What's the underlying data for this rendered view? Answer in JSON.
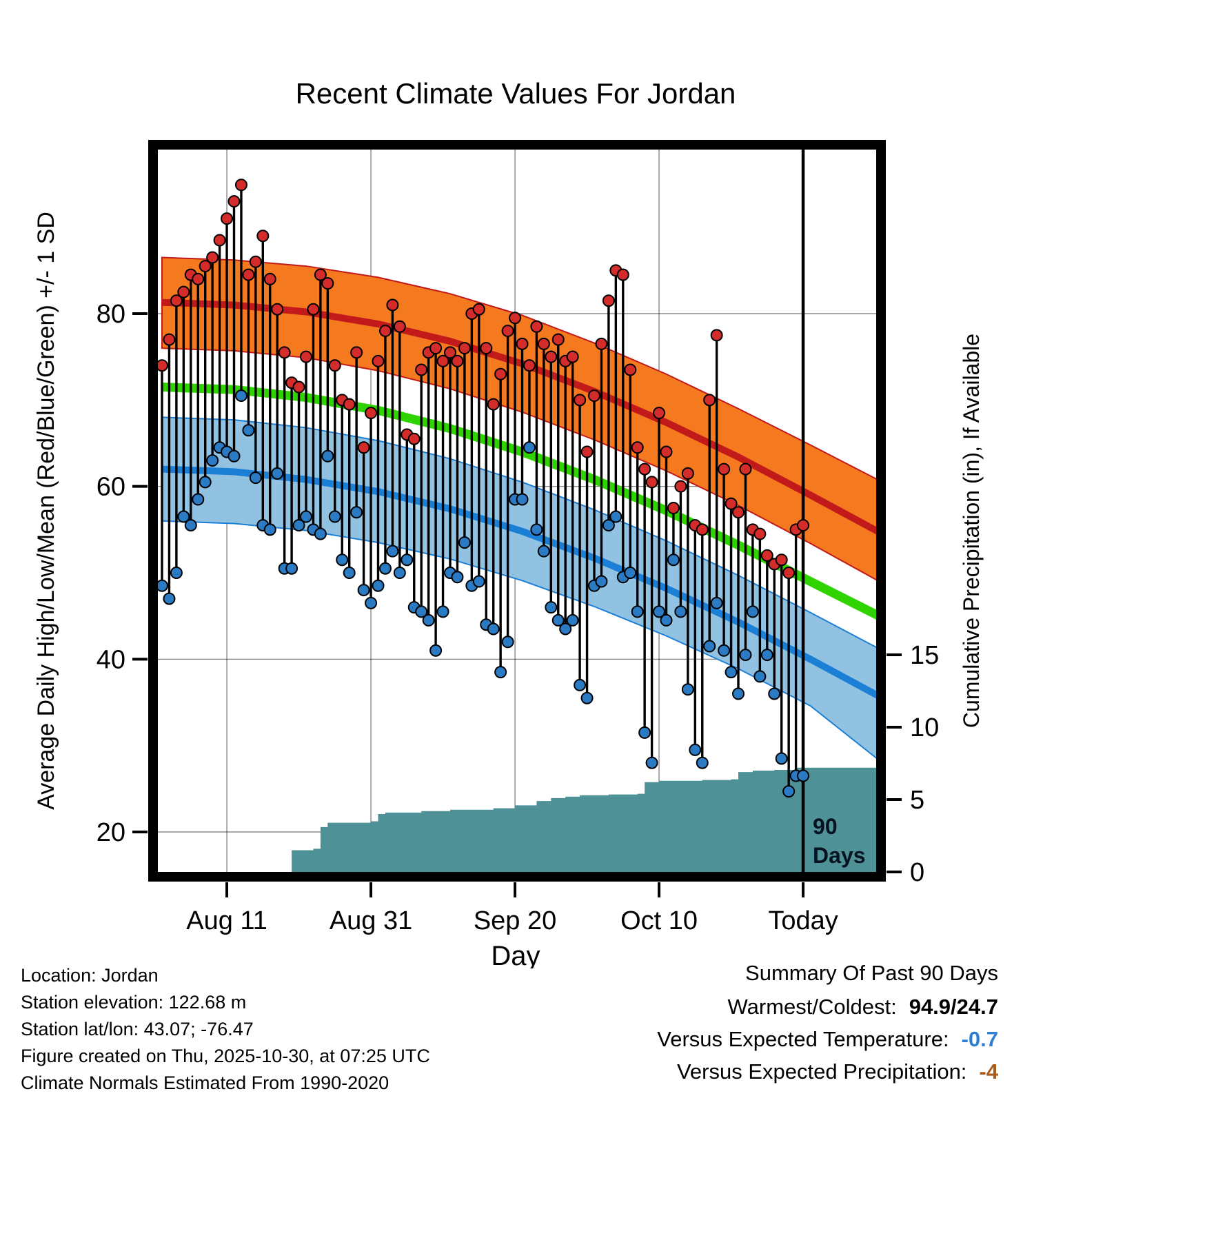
{
  "title": "Recent Climate Values For Jordan",
  "chart_data": {
    "type": "line",
    "title": "Recent Climate Values For Jordan",
    "xlabel": "Day",
    "ylabel_left": "Average Daily High/Low/Mean (Red/Blue/Green) +/- 1 SD",
    "ylabel_right": "Cumulative Precipitation (in), If Available",
    "x_axis": {
      "tick_labels": [
        "Aug 11",
        "Aug 31",
        "Sep 20",
        "Oct 10",
        "Today"
      ],
      "tick_days": [
        9,
        29,
        49,
        69,
        89
      ]
    },
    "left_axis": {
      "ticks": [
        20,
        40,
        60,
        80
      ],
      "range": [
        15,
        99
      ]
    },
    "right_axis": {
      "ticks": [
        0,
        5,
        10,
        15
      ],
      "range": [
        0,
        15
      ]
    },
    "today_day": 89,
    "today_label_lines": [
      "90",
      "Days"
    ],
    "daily": {
      "highs": [
        74,
        77,
        81.5,
        82.5,
        84.5,
        84,
        85.5,
        86.5,
        88.5,
        91,
        93,
        94.9,
        84.5,
        86,
        89,
        84,
        80.5,
        75.5,
        72,
        71.5,
        75,
        80.5,
        84.5,
        83.5,
        74,
        70,
        69.5,
        75.5,
        64.5,
        68.5,
        74.5,
        78,
        81,
        78.5,
        66,
        65.5,
        73.5,
        75.5,
        76,
        74.5,
        75.5,
        74.5,
        76,
        80,
        80.5,
        76,
        69.5,
        73,
        78,
        79.5,
        76.5,
        74,
        78.5,
        76.5,
        75,
        77,
        74.5,
        75,
        70,
        64,
        70.5,
        76.5,
        81.5,
        85,
        84.5,
        73.5,
        64.5,
        62,
        60.5,
        68.5,
        64,
        57.5,
        60,
        61.5,
        55.5,
        55,
        70,
        77.5,
        62,
        58,
        57,
        62,
        55,
        54.5,
        52,
        51,
        51.5,
        50,
        55,
        55.5
      ],
      "lows": [
        48.5,
        47,
        50,
        56.5,
        55.5,
        58.5,
        60.5,
        63,
        64.5,
        64,
        63.5,
        70.5,
        66.5,
        61,
        55.5,
        55,
        61.5,
        50.5,
        50.5,
        55.5,
        56.5,
        55,
        54.5,
        63.5,
        56.5,
        51.5,
        50,
        57,
        48,
        46.5,
        48.5,
        50.5,
        52.5,
        50,
        51.5,
        46,
        45.5,
        44.5,
        41,
        45.5,
        50,
        49.5,
        53.5,
        48.5,
        49,
        44,
        43.5,
        38.5,
        42,
        58.5,
        58.5,
        64.5,
        55,
        52.5,
        46,
        44.5,
        43.5,
        44.5,
        37,
        35.5,
        48.5,
        49,
        55.5,
        56.5,
        49.5,
        50,
        45.5,
        31.5,
        28,
        45.5,
        44.5,
        51.5,
        45.5,
        36.5,
        29.5,
        28,
        41.5,
        46.5,
        41,
        38.5,
        36,
        40.5,
        45.5,
        38,
        40.5,
        36,
        28.5,
        24.7,
        26.5,
        26.5
      ]
    },
    "normals": {
      "days": [
        0,
        10,
        20,
        30,
        40,
        50,
        60,
        70,
        80,
        90,
        100
      ],
      "high_upper": [
        86.5,
        86.2,
        85.5,
        84.2,
        82.3,
        79.8,
        76.6,
        73,
        69,
        64.8,
        60.5
      ],
      "high_center": [
        81.3,
        81,
        80.2,
        78.8,
        76.8,
        74.2,
        71,
        67.4,
        63.4,
        59,
        54.5
      ],
      "high_lower": [
        76,
        75.7,
        74.9,
        73.4,
        71.3,
        68.6,
        65.4,
        61.8,
        57.8,
        53.4,
        48.8
      ],
      "mean": [
        71.5,
        71.2,
        70.3,
        68.8,
        66.7,
        64,
        60.8,
        57.2,
        53.2,
        49,
        44.8
      ],
      "low_upper": [
        68,
        67.7,
        66.8,
        65.3,
        63.2,
        60.5,
        57.3,
        53.7,
        49.7,
        45.4,
        41
      ],
      "low_center": [
        62,
        61.7,
        60.8,
        59.4,
        57.4,
        54.8,
        51.7,
        48.2,
        44.3,
        40,
        35.5
      ],
      "low_lower": [
        56,
        55.7,
        54.9,
        53.5,
        51.6,
        49.1,
        46.1,
        42.7,
        38.9,
        34.6,
        28
      ]
    },
    "precip_steps": [
      [
        17.5,
        0
      ],
      [
        18,
        1.5
      ],
      [
        21,
        1.6
      ],
      [
        22,
        3.1
      ],
      [
        23,
        3.4
      ],
      [
        29,
        3.5
      ],
      [
        30,
        4.0
      ],
      [
        31,
        4.1
      ],
      [
        36,
        4.2
      ],
      [
        40,
        4.3
      ],
      [
        46,
        4.4
      ],
      [
        49,
        4.6
      ],
      [
        52,
        4.9
      ],
      [
        54,
        5.1
      ],
      [
        56,
        5.2
      ],
      [
        58,
        5.3
      ],
      [
        62,
        5.35
      ],
      [
        66,
        5.4
      ],
      [
        67,
        6.2
      ],
      [
        69,
        6.3
      ],
      [
        75,
        6.35
      ],
      [
        79,
        6.4
      ],
      [
        80,
        6.9
      ],
      [
        82,
        7.0
      ],
      [
        85,
        7.05
      ],
      [
        88,
        7.2
      ]
    ]
  },
  "colors": {
    "high_band": "#F4791F",
    "high_line": "#C21A1A",
    "high_dot": "#D42B2B",
    "low_band": "#92C2E2",
    "low_line": "#1C7FD6",
    "low_dot": "#2B7BC4",
    "mean_line": "#2FD400",
    "precip_fill": "#4E9196",
    "grid": "#000000",
    "today_line": "#000000"
  },
  "footer": {
    "lines": [
      "Location: Jordan",
      "Station elevation: 122.68 m",
      "Station lat/lon: 43.07; -76.47",
      "Figure created on Thu, 2025-10-30, at 07:25 UTC",
      "Climate Normals Estimated From 1990-2020"
    ]
  },
  "summary": {
    "title": "Summary Of Past 90 Days",
    "rows": [
      {
        "label": "Warmest/Coldest:",
        "value": "94.9/24.7",
        "color": "#000000"
      },
      {
        "label": "Versus Expected Temperature:",
        "value": "-0.7",
        "color": "#2E7FD1"
      },
      {
        "label": "Versus Expected Precipitation:",
        "value": "-4",
        "color": "#A85A19"
      }
    ]
  }
}
